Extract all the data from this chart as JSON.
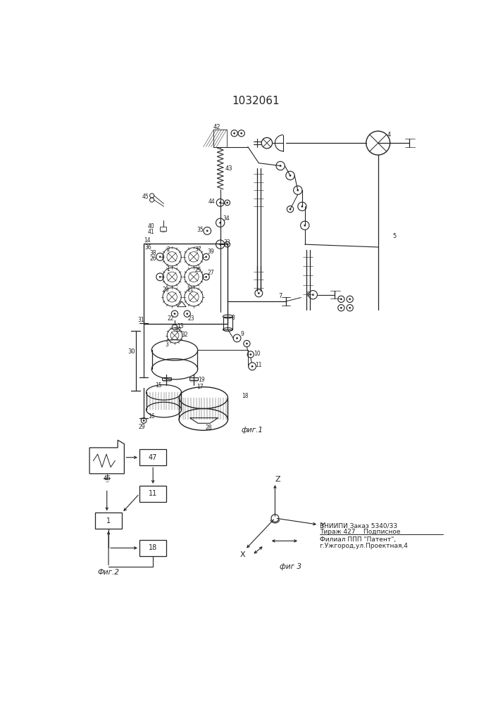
{
  "title": "1032061",
  "fig1_label": "фиг.1",
  "fig2_label": "Фиг.2",
  "fig3_label": "фиг 3",
  "vniiipi_line1": "ВНИИПИ Заказ 5340/33",
  "vniiipi_line2": "Тираж 427    Подписное",
  "filial_line1": "Филиал ППП \"Патент\",",
  "filial_line2": "г.Ужгород,ул.Проектная,4",
  "bg_color": "#ffffff",
  "line_color": "#222222"
}
